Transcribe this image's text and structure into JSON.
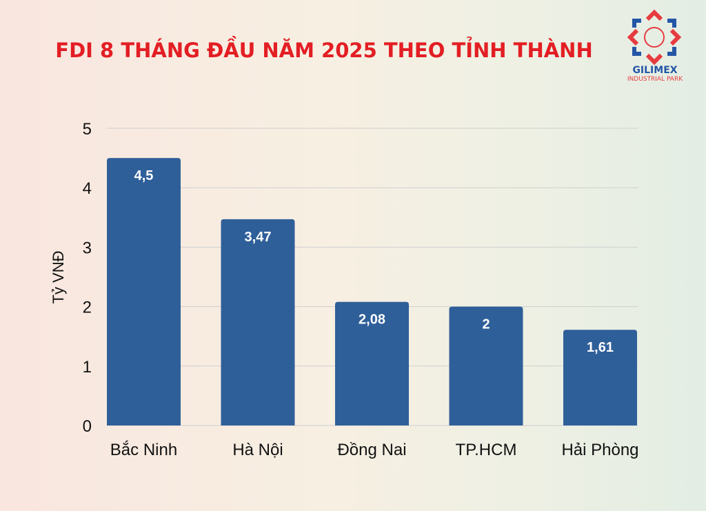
{
  "logo": {
    "name": "GILIMEX",
    "subtitle": "INDUSTRIAL PARK"
  },
  "chart_data": {
    "type": "bar",
    "title": "FDI 8 THÁNG ĐẦU NĂM 2025 THEO TỈNH THÀNH",
    "xlabel": "",
    "ylabel": "Tỷ VNĐ",
    "categories": [
      "Bắc Ninh",
      "Hà Nội",
      "Đồng Nai",
      "TP.HCM",
      "Hải Phòng"
    ],
    "values": [
      4.5,
      3.47,
      2.08,
      2,
      1.61
    ],
    "data_labels": [
      "4,5",
      "3,47",
      "2,08",
      "2",
      "1,61"
    ],
    "ylim": [
      0,
      5
    ],
    "yticks": [
      "0",
      "1",
      "2",
      "3",
      "4",
      "5"
    ],
    "grid": true,
    "colors": {
      "bar": "#2f5f99",
      "title": "#e31e24"
    }
  }
}
